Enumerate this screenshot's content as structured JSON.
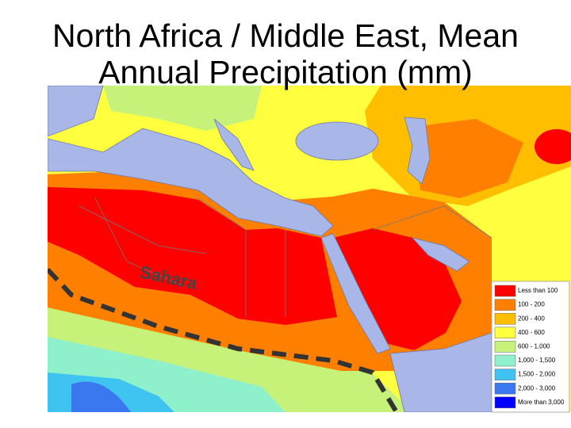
{
  "title": [
    "North Africa / Middle East, Mean",
    "Annual Precipitation (mm)"
  ],
  "map_labels": {
    "region": "Sahara"
  },
  "legend": {
    "items": [
      {
        "label": "Less than 100",
        "color": "#ff0000"
      },
      {
        "label": "100 - 200",
        "color": "#ff8000"
      },
      {
        "label": "200 - 400",
        "color": "#ffbf00"
      },
      {
        "label": "400 - 600",
        "color": "#ffff40"
      },
      {
        "label": "600 - 1,000",
        "color": "#c6f27a"
      },
      {
        "label": "1,000 - 1,500",
        "color": "#8ff0cc"
      },
      {
        "label": "1,500 - 2,000",
        "color": "#3fc4f2"
      },
      {
        "label": "2,000 - 3,000",
        "color": "#3a78f0"
      },
      {
        "label": "More than 3,000",
        "color": "#0000ff"
      }
    ]
  }
}
